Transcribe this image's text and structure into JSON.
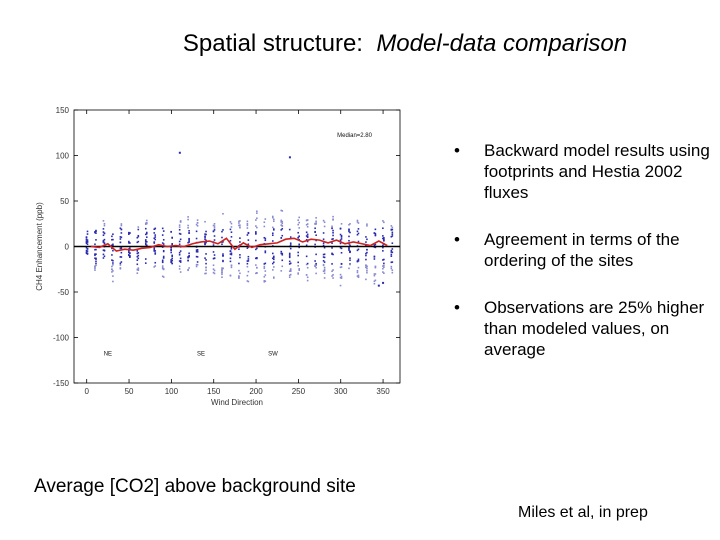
{
  "slide": {
    "title_prefix": "Spatial structure:",
    "title_italic": "Model-data comparison",
    "bullets": [
      "Backward model results using footprints and Hestia 2002 fluxes",
      "Agreement in terms of the ordering of the sites",
      "Observations are 25% higher than modeled values, on average"
    ],
    "caption_left": "Average [CO2] above background site",
    "caption_right": "Miles et al, in prep",
    "bullet_glyph": "•"
  },
  "colors": {
    "obs_points": "#2b2bb0",
    "model_points": "#8a8ad0",
    "median_line": "#cc2222",
    "zero_line": "#000000"
  },
  "chart_data": {
    "type": "scatter",
    "title": "",
    "annotation": "Median=2.80",
    "xlabel": "Wind Direction",
    "ylabel": "CH4 Enhancement (ppb)",
    "xlim": [
      -15,
      370
    ],
    "ylim": [
      -150,
      150
    ],
    "xticks": [
      0,
      50,
      100,
      150,
      200,
      250,
      300,
      350
    ],
    "yticks": [
      -150,
      -100,
      -50,
      0,
      50,
      100,
      150
    ],
    "sector_labels": [
      {
        "text": "NE",
        "x": 25,
        "y": -120
      },
      {
        "text": "SE",
        "x": 135,
        "y": -120
      },
      {
        "text": "SW",
        "x": 220,
        "y": -120
      }
    ],
    "scatter_columns": {
      "x": [
        0,
        10,
        20,
        30,
        40,
        50,
        60,
        70,
        80,
        90,
        100,
        110,
        120,
        130,
        140,
        150,
        160,
        170,
        180,
        190,
        200,
        210,
        220,
        230,
        240,
        250,
        260,
        270,
        280,
        290,
        300,
        310,
        320,
        330,
        340,
        350,
        360
      ],
      "spread_pos": [
        20,
        18,
        30,
        15,
        25,
        20,
        25,
        30,
        20,
        22,
        20,
        30,
        35,
        30,
        40,
        25,
        40,
        35,
        45,
        30,
        40,
        30,
        35,
        40,
        45,
        35,
        30,
        38,
        30,
        35,
        30,
        28,
        30,
        25,
        20,
        30,
        25
      ],
      "spread_neg": [
        -10,
        -30,
        -15,
        -40,
        -25,
        -12,
        -30,
        -20,
        -25,
        -35,
        -20,
        -30,
        -35,
        -25,
        -30,
        -30,
        -35,
        -40,
        -35,
        -45,
        -30,
        -40,
        -35,
        -30,
        -40,
        -35,
        -38,
        -30,
        -35,
        -40,
        -45,
        -30,
        -35,
        -38,
        -45,
        -30,
        -30
      ]
    },
    "outliers": [
      {
        "x": 110,
        "y": 103
      },
      {
        "x": 240,
        "y": 98
      },
      {
        "x": 350,
        "y": -40
      },
      {
        "x": 345,
        "y": -43
      }
    ],
    "median_line": {
      "x": [
        5,
        15,
        25,
        35,
        45,
        55,
        65,
        75,
        85,
        95,
        105,
        115,
        125,
        135,
        145,
        155,
        165,
        175,
        185,
        195,
        205,
        215,
        225,
        235,
        245,
        255,
        265,
        275,
        285,
        295,
        305,
        315,
        325,
        335,
        345,
        355
      ],
      "y": [
        0,
        -1,
        3,
        -5,
        -3,
        -4,
        -2,
        -1,
        2,
        0,
        1,
        0,
        3,
        5,
        6,
        3,
        9,
        -3,
        4,
        -1,
        2,
        3,
        4,
        8,
        9,
        5,
        8,
        7,
        4,
        7,
        3,
        5,
        3,
        1,
        6,
        1
      ]
    }
  }
}
